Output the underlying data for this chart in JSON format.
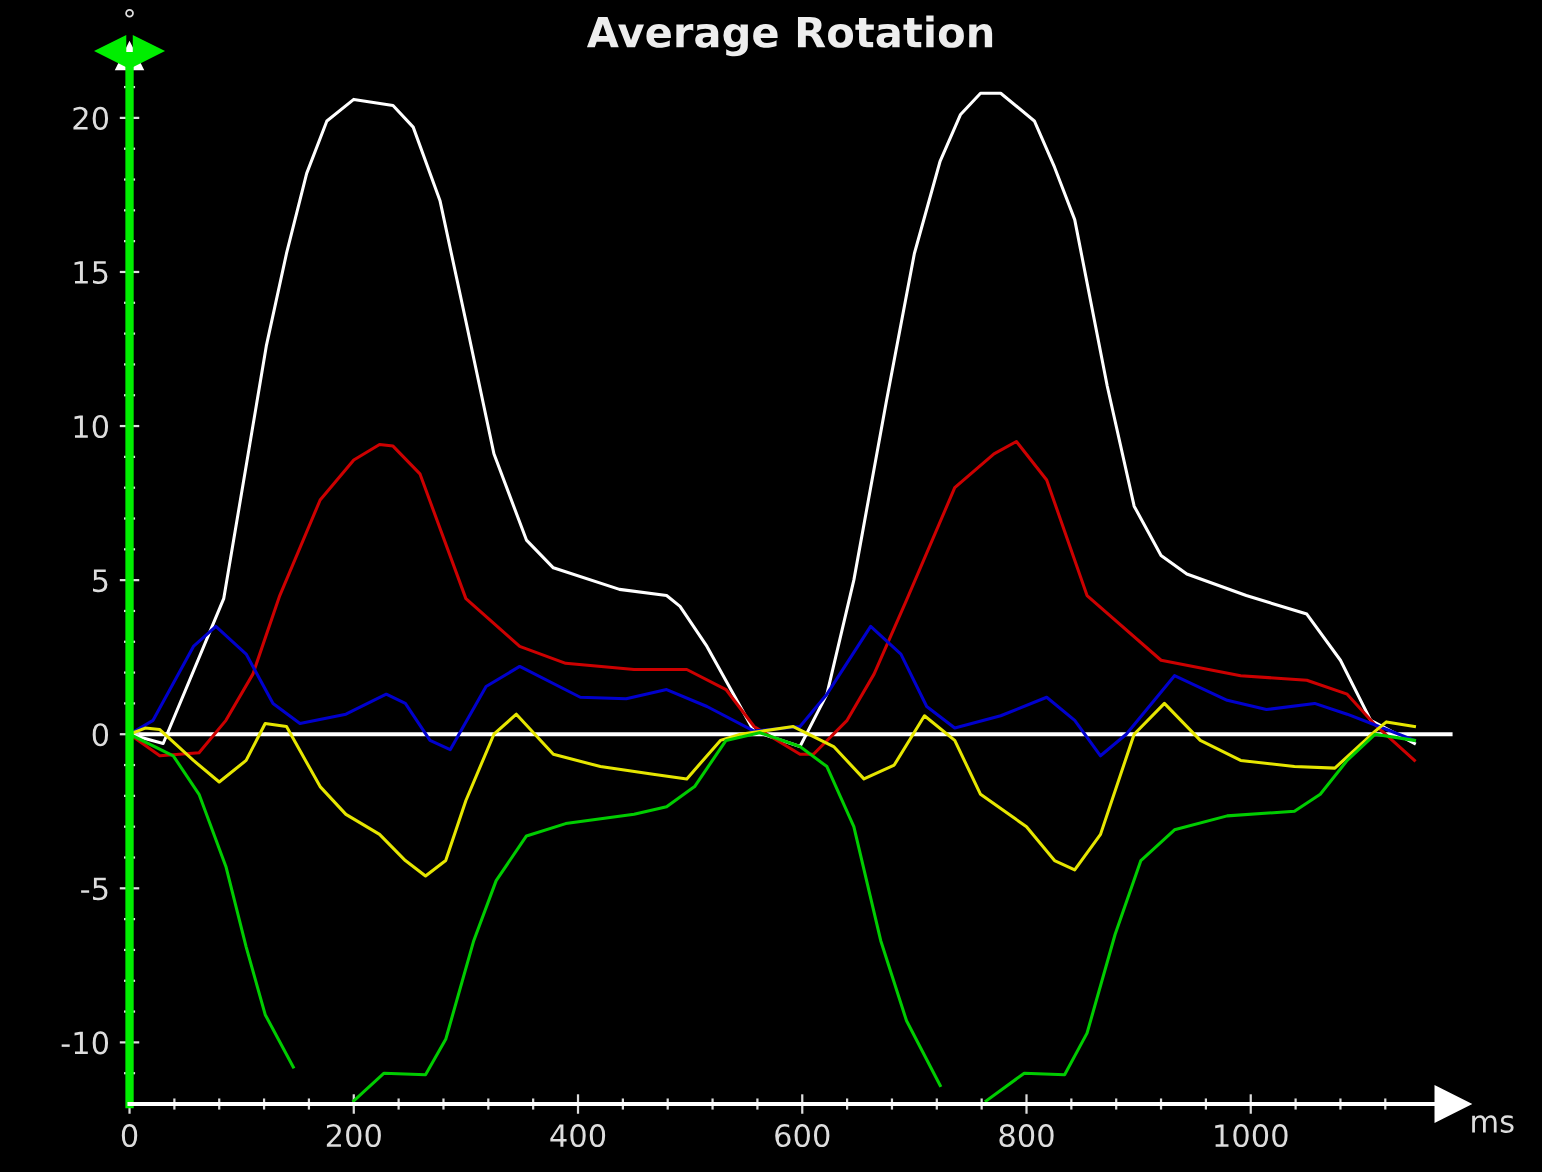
{
  "chart_data": {
    "type": "line",
    "title": "Average Rotation",
    "xlabel": "ms",
    "ylabel": "°",
    "xlim": [
      0,
      1180
    ],
    "ylim": [
      -12,
      22
    ],
    "xticks": [
      0,
      {
        "value": 40,
        "label": null
      },
      {
        "value": 80,
        "label": null
      },
      {
        "value": 120,
        "label": null
      },
      {
        "value": 160,
        "label": null
      },
      200,
      {
        "value": 240,
        "label": null
      },
      {
        "value": 280,
        "label": null
      },
      {
        "value": 320,
        "label": null
      },
      {
        "value": 360,
        "label": null
      },
      400,
      {
        "value": 440,
        "label": null
      },
      {
        "value": 480,
        "label": null
      },
      {
        "value": 520,
        "label": null
      },
      {
        "value": 560,
        "label": null
      },
      600,
      {
        "value": 640,
        "label": null
      },
      {
        "value": 680,
        "label": null
      },
      {
        "value": 720,
        "label": null
      },
      {
        "value": 760,
        "label": null
      },
      800,
      {
        "value": 840,
        "label": null
      },
      {
        "value": 880,
        "label": null
      },
      {
        "value": 920,
        "label": null
      },
      {
        "value": 960,
        "label": null
      },
      1000,
      {
        "value": 1040,
        "label": null
      },
      {
        "value": 1080,
        "label": null
      },
      {
        "value": 1120,
        "label": null
      }
    ],
    "yticks": [
      -10,
      {
        "value": -11,
        "label": null
      },
      {
        "value": -9,
        "label": null
      },
      {
        "value": -8,
        "label": null
      },
      {
        "value": -7,
        "label": null
      },
      {
        "value": -6,
        "label": null
      },
      -5,
      {
        "value": -4,
        "label": null
      },
      {
        "value": -3,
        "label": null
      },
      {
        "value": -2,
        "label": null
      },
      {
        "value": -1,
        "label": null
      },
      0,
      {
        "value": 1,
        "label": null
      },
      {
        "value": 2,
        "label": null
      },
      {
        "value": 3,
        "label": null
      },
      {
        "value": 4,
        "label": null
      },
      5,
      {
        "value": 6,
        "label": null
      },
      {
        "value": 7,
        "label": null
      },
      {
        "value": 8,
        "label": null
      },
      {
        "value": 9,
        "label": null
      },
      10,
      {
        "value": 11,
        "label": null
      },
      {
        "value": 12,
        "label": null
      },
      {
        "value": 13,
        "label": null
      },
      {
        "value": 14,
        "label": null
      },
      15,
      {
        "value": 16,
        "label": null
      },
      {
        "value": 17,
        "label": null
      },
      {
        "value": 18,
        "label": null
      },
      {
        "value": 19,
        "label": null
      },
      20,
      {
        "value": 21,
        "label": null
      }
    ],
    "grid": false,
    "marker": "none",
    "line_style": "solid",
    "ref_lines": [
      {
        "axis": "y",
        "value": 0,
        "label": null,
        "color": "#ffffff"
      }
    ],
    "series": [
      {
        "color": "#ffffff",
        "x": [
          0,
          30,
          84,
          104,
          122,
          140,
          158,
          176,
          200,
          235,
          253,
          277,
          300,
          325,
          354,
          378,
          437,
          479,
          491,
          515,
          557,
          598,
          622,
          646,
          675,
          700,
          723,
          741,
          759,
          777,
          807,
          825,
          843,
          872,
          896,
          920,
          943,
          996,
          1050,
          1080,
          1107,
          1146
        ],
        "values": [
          0,
          -0.3,
          4.4,
          8.7,
          12.6,
          15.6,
          18.2,
          19.9,
          20.6,
          20.4,
          19.7,
          17.3,
          13.4,
          9.1,
          6.3,
          5.4,
          4.7,
          4.5,
          4.15,
          2.85,
          0.1,
          -0.4,
          1.3,
          5.0,
          10.8,
          15.6,
          18.6,
          20.1,
          20.8,
          20.8,
          19.9,
          18.4,
          16.7,
          11.3,
          7.4,
          5.8,
          5.2,
          4.5,
          3.9,
          2.4,
          0.45,
          -0.3
        ]
      },
      {
        "color": "#cc0000",
        "x": [
          0,
          27,
          62,
          86,
          110,
          134,
          170,
          200,
          223,
          235,
          259,
          300,
          348,
          389,
          450,
          497,
          532,
          557,
          598,
          610,
          640,
          664,
          693,
          736,
          771,
          791,
          818,
          854,
          920,
          991,
          1050,
          1086,
          1111,
          1146
        ],
        "values": [
          0,
          -0.7,
          -0.6,
          0.45,
          1.95,
          4.5,
          7.6,
          8.9,
          9.4,
          9.35,
          8.45,
          4.4,
          2.85,
          2.3,
          2.1,
          2.1,
          1.45,
          0.25,
          -0.65,
          -0.65,
          0.45,
          1.95,
          4.35,
          8.0,
          9.1,
          9.5,
          8.25,
          4.5,
          2.4,
          1.9,
          1.75,
          1.3,
          0.3,
          -0.85
        ]
      },
      {
        "color": "#0000cc",
        "x": [
          0,
          21,
          57,
          77,
          104,
          128,
          152,
          193,
          229,
          246,
          268,
          286,
          318,
          348,
          402,
          443,
          479,
          515,
          557,
          598,
          622,
          661,
          688,
          711,
          736,
          777,
          818,
          843,
          866,
          889,
          932,
          979,
          1014,
          1057,
          1086,
          1111,
          1146
        ],
        "values": [
          0,
          0.45,
          2.85,
          3.5,
          2.6,
          1.0,
          0.35,
          0.65,
          1.3,
          1.0,
          -0.2,
          -0.5,
          1.55,
          2.2,
          1.2,
          1.15,
          1.45,
          0.9,
          0.1,
          0.25,
          1.3,
          3.5,
          2.6,
          0.9,
          0.2,
          0.6,
          1.2,
          0.45,
          -0.7,
          0,
          1.9,
          1.1,
          0.8,
          1.0,
          0.65,
          0.3,
          -0.2
        ]
      },
      {
        "color": "#e6e600",
        "x": [
          0,
          14,
          27,
          57,
          80,
          104,
          121,
          140,
          170,
          193,
          223,
          246,
          264,
          282,
          300,
          325,
          345,
          378,
          420,
          467,
          497,
          527,
          545,
          592,
          628,
          655,
          682,
          709,
          736,
          759,
          800,
          825,
          843,
          866,
          896,
          923,
          955,
          991,
          1039,
          1075,
          1111,
          1121,
          1146
        ],
        "values": [
          0,
          0.2,
          0.15,
          -0.85,
          -1.55,
          -0.85,
          0.35,
          0.25,
          -1.7,
          -2.6,
          -3.25,
          -4.1,
          -4.6,
          -4.1,
          -2.15,
          0,
          0.65,
          -0.65,
          -1.05,
          -1.3,
          -1.45,
          -0.2,
          0,
          0.25,
          -0.4,
          -1.45,
          -1.0,
          0.6,
          -0.2,
          -1.95,
          -3.0,
          -4.1,
          -4.4,
          -3.25,
          0,
          1.0,
          -0.2,
          -0.85,
          -1.05,
          -1.1,
          0.1,
          0.4,
          0.25
        ]
      },
      {
        "color": "#00cc00",
        "x": [
          0,
          39,
          62,
          86,
          104,
          121,
          146,
          182,
          200,
          227,
          264,
          282,
          307,
          327,
          354,
          389,
          450,
          479,
          504,
          532,
          562,
          598,
          622,
          646,
          670,
          693,
          723,
          746,
          764,
          798,
          834,
          854,
          879,
          902,
          932,
          979,
          1039,
          1062,
          1086,
          1111,
          1146
        ],
        "values": [
          0,
          -0.7,
          -1.95,
          -4.3,
          -6.9,
          -9.1,
          -10.8,
          null,
          -11.9,
          -11.0,
          -11.05,
          -9.9,
          -6.7,
          -4.75,
          -3.3,
          -2.9,
          -2.6,
          -2.35,
          -1.7,
          -0.2,
          0.05,
          -0.4,
          -1.05,
          -3.0,
          -6.7,
          -9.3,
          -11.4,
          null,
          -11.9,
          -11.0,
          -11.05,
          -9.7,
          -6.5,
          -4.1,
          -3.1,
          -2.65,
          -2.5,
          -1.95,
          -0.85,
          0,
          -0.2
        ]
      }
    ]
  }
}
